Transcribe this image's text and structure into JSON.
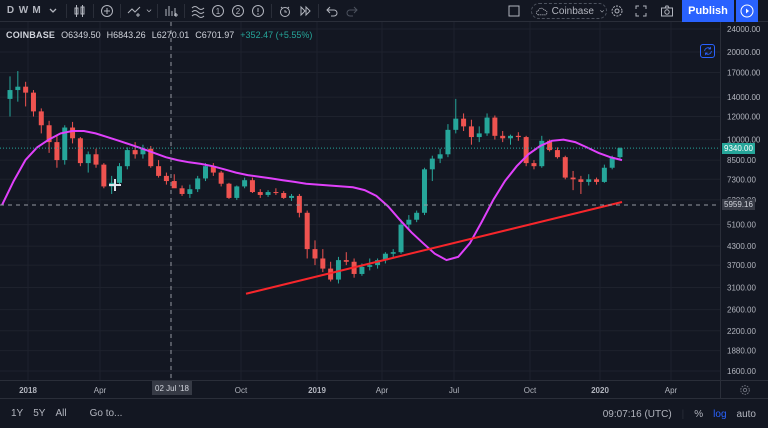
{
  "toolbar": {
    "intervals": [
      "D",
      "W",
      "M"
    ],
    "layout_name": "Coinbase",
    "publish_label": "Publish",
    "icons": [
      "candles-icon",
      "add-icon",
      "compare-icon",
      "indicators-icon",
      "templates-icon",
      "one-icon",
      "two-icon",
      "alert-icon",
      "replay-icon",
      "undo-icon",
      "redo-icon",
      "fullscreen-icon",
      "settings-icon",
      "snapshot-icon"
    ]
  },
  "legend": {
    "symbol": "COINBASE",
    "open": "O6349.50",
    "high": "H6843.26",
    "low": "L6270.01",
    "close": "C6701.97",
    "change": "+352.47 (+5.55%)"
  },
  "price_axis": {
    "ticks": [
      "24000.00",
      "20000.00",
      "17000.00",
      "14000.00",
      "12000.00",
      "10000.00",
      "8500.00",
      "7300.00",
      "6200.00",
      "5100.00",
      "4300.00",
      "3700.00",
      "3100.00",
      "2600.00",
      "2200.00",
      "1880.00",
      "1600.00"
    ],
    "last_price_label": "9340.00",
    "crosshair_price_label": "5959.16",
    "colors": {
      "last_price": "#26a69a",
      "crosshair": "#363a45"
    }
  },
  "time_axis": {
    "ticks": [
      "2018",
      "Apr",
      "Jul",
      "Oct",
      "2019",
      "Apr",
      "Jul",
      "Oct",
      "2020",
      "Apr"
    ],
    "crosshair_label": "02 Jul '18"
  },
  "bottom_bar": {
    "ranges": [
      "1Y",
      "5Y",
      "All"
    ],
    "goto_label": "Go to...",
    "clock": "09:07:16 (UTC)",
    "percent_label": "%",
    "log_label": "log",
    "auto_label": "auto"
  },
  "chart_data": {
    "type": "candlestick",
    "scale": "log",
    "interval": "weekly",
    "candles_ohlc": [
      [
        13800,
        16500,
        12000,
        14800
      ],
      [
        14800,
        17200,
        13500,
        15200
      ],
      [
        15200,
        15800,
        13000,
        14500
      ],
      [
        14500,
        14800,
        12000,
        12500
      ],
      [
        12500,
        12800,
        10500,
        11200
      ],
      [
        11200,
        11600,
        9000,
        9800
      ],
      [
        9800,
        10400,
        8000,
        8500
      ],
      [
        8500,
        11200,
        8200,
        11000
      ],
      [
        11000,
        11500,
        9700,
        10100
      ],
      [
        10100,
        10200,
        8100,
        8300
      ],
      [
        8300,
        9100,
        7700,
        8900
      ],
      [
        8900,
        9300,
        8000,
        8200
      ],
      [
        8200,
        8300,
        6800,
        6900
      ],
      [
        6900,
        7500,
        6500,
        7100
      ],
      [
        7100,
        8300,
        7000,
        8100
      ],
      [
        8100,
        9400,
        7900,
        9200
      ],
      [
        9200,
        9800,
        8600,
        8900
      ],
      [
        8900,
        9600,
        8600,
        9300
      ],
      [
        9300,
        9500,
        8000,
        8100
      ],
      [
        8100,
        8500,
        7400,
        7500
      ],
      [
        7500,
        7700,
        7000,
        7200
      ],
      [
        7200,
        7600,
        6900,
        6800
      ],
      [
        6800,
        6950,
        6400,
        6500
      ],
      [
        6500,
        7000,
        6300,
        6750
      ],
      [
        6750,
        7500,
        6600,
        7350
      ],
      [
        7350,
        8300,
        7200,
        8100
      ],
      [
        8100,
        8300,
        7500,
        7700
      ],
      [
        7700,
        7800,
        6900,
        7050
      ],
      [
        7050,
        7100,
        6250,
        6300
      ],
      [
        6300,
        6950,
        6200,
        6900
      ],
      [
        6900,
        7400,
        6800,
        7250
      ],
      [
        7250,
        7400,
        6550,
        6600
      ],
      [
        6600,
        6750,
        6300,
        6450
      ],
      [
        6450,
        6700,
        6350,
        6600
      ],
      [
        6600,
        6800,
        6450,
        6550
      ],
      [
        6550,
        6650,
        6250,
        6300
      ],
      [
        6300,
        6500,
        6150,
        6400
      ],
      [
        6400,
        6500,
        5400,
        5600
      ],
      [
        5600,
        5700,
        3900,
        4200
      ],
      [
        4200,
        4500,
        3700,
        3900
      ],
      [
        3900,
        4200,
        3500,
        3600
      ],
      [
        3600,
        3800,
        3250,
        3300
      ],
      [
        3300,
        3950,
        3200,
        3850
      ],
      [
        3850,
        4100,
        3700,
        3800
      ],
      [
        3800,
        3900,
        3350,
        3450
      ],
      [
        3450,
        3750,
        3400,
        3650
      ],
      [
        3650,
        3900,
        3550,
        3700
      ],
      [
        3700,
        3900,
        3600,
        3850
      ],
      [
        3850,
        4100,
        3750,
        4050
      ],
      [
        4050,
        4200,
        3900,
        4100
      ],
      [
        4100,
        5300,
        4050,
        5100
      ],
      [
        5100,
        5500,
        4900,
        5300
      ],
      [
        5300,
        5700,
        5200,
        5600
      ],
      [
        5600,
        8000,
        5500,
        7900
      ],
      [
        7900,
        8800,
        7200,
        8600
      ],
      [
        8600,
        9300,
        8300,
        8900
      ],
      [
        8900,
        11300,
        8700,
        10800
      ],
      [
        10800,
        13800,
        10500,
        11800
      ],
      [
        11800,
        12300,
        10700,
        11100
      ],
      [
        11100,
        11700,
        9600,
        10200
      ],
      [
        10200,
        11100,
        9800,
        10500
      ],
      [
        10500,
        12300,
        10300,
        11900
      ],
      [
        11900,
        12100,
        10000,
        10300
      ],
      [
        10300,
        10700,
        9800,
        10100
      ],
      [
        10100,
        10400,
        9600,
        10300
      ],
      [
        10300,
        10600,
        9900,
        10200
      ],
      [
        10200,
        10300,
        8100,
        8300
      ],
      [
        8300,
        8500,
        7900,
        8100
      ],
      [
        8100,
        10300,
        8000,
        9900
      ],
      [
        9900,
        10000,
        9100,
        9200
      ],
      [
        9200,
        9400,
        8600,
        8700
      ],
      [
        8700,
        8800,
        7300,
        7400
      ],
      [
        7400,
        7800,
        6700,
        7300
      ],
      [
        7300,
        7500,
        6500,
        7150
      ],
      [
        7150,
        7600,
        6950,
        7300
      ],
      [
        7300,
        7400,
        7000,
        7150
      ],
      [
        7150,
        8200,
        7100,
        8000
      ],
      [
        8000,
        8800,
        7900,
        8700
      ],
      [
        8700,
        9400,
        8600,
        9340
      ]
    ],
    "moving_average_magenta": [
      5950,
      7200,
      8500,
      9400,
      10000,
      10500,
      10700,
      10700,
      10500,
      10200,
      9900,
      9600,
      9300,
      9000,
      8700,
      8500,
      8350,
      8250,
      8100,
      7900,
      7700,
      7550,
      7450,
      7350,
      7250,
      7150,
      7050,
      7000,
      6950,
      6900,
      6850,
      6700,
      6400,
      5900,
      5300,
      4800,
      4400,
      4050,
      3850,
      3950,
      4400,
      5200,
      6200,
      7200,
      8100,
      8900,
      9500,
      9900,
      10000,
      9800,
      9400,
      9000,
      8700,
      8500
    ],
    "ma_points_start_index": 0,
    "trendline_red": [
      [
        36,
        3150
      ],
      [
        79,
        6100
      ]
    ]
  }
}
